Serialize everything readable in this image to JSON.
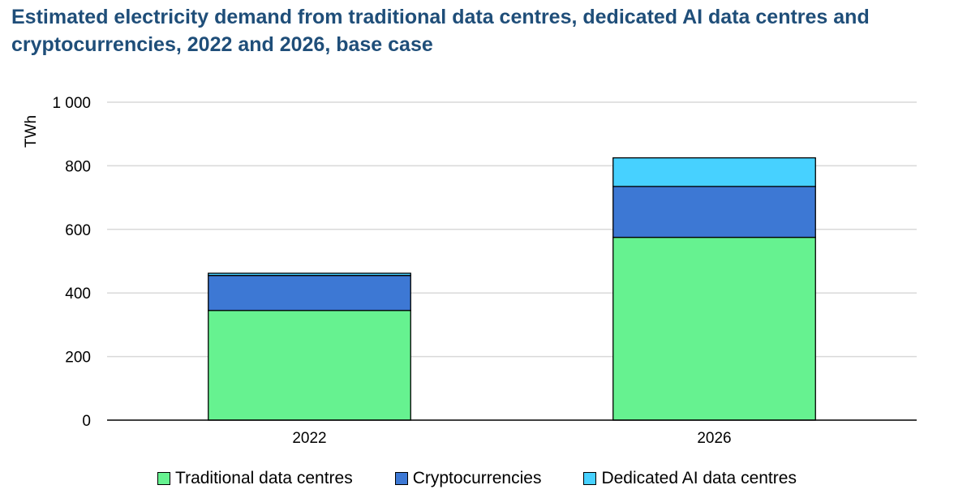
{
  "chart_data": {
    "type": "bar",
    "stacked": true,
    "title": "Estimated electricity demand from traditional data centres, dedicated AI data centres and cryptocurrencies, 2022 and 2026, base case",
    "ylabel": "TWh",
    "xlabel": "",
    "ylim": [
      0,
      1000
    ],
    "yticks": [
      0,
      200,
      400,
      600,
      800,
      1000
    ],
    "ytick_labels": [
      "0",
      "200",
      "400",
      "600",
      "800",
      "1 000"
    ],
    "grid": true,
    "legend_position": "bottom",
    "categories": [
      "2022",
      "2026"
    ],
    "series": [
      {
        "name": "Traditional data centres",
        "color": "#66f290",
        "values": [
          345,
          575
        ]
      },
      {
        "name": "Cryptocurrencies",
        "color": "#3d78d4",
        "values": [
          110,
          160
        ]
      },
      {
        "name": "Dedicated AI data centres",
        "color": "#47d1ff",
        "values": [
          7,
          90
        ]
      }
    ]
  }
}
